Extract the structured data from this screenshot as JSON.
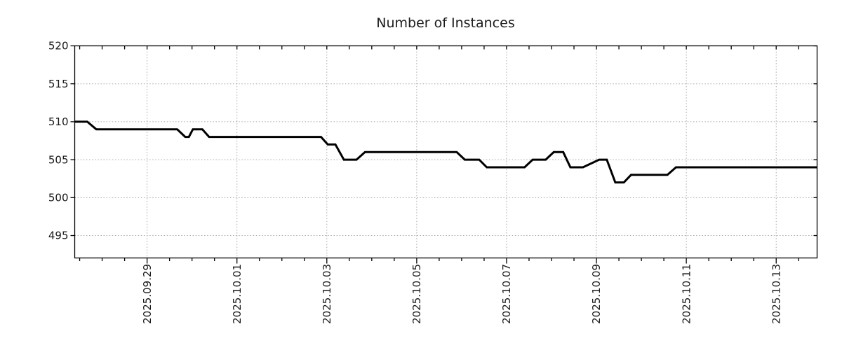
{
  "chart_data": {
    "type": "line",
    "title": "Number of Instances",
    "legend": "none",
    "grid": {
      "visible": true,
      "style": "dotted",
      "color": "#a6a6a6"
    },
    "colors": {
      "line": "#000000",
      "axis": "#000000",
      "text": "#1a1a1a",
      "background": "#ffffff"
    },
    "x_axis": {
      "kind": "date",
      "reference": "d = days relative to 2025.09.29 00:00",
      "range_days": [
        -1.61,
        14.91
      ],
      "minor_tick_step_days": 0.5,
      "major_ticks": [
        {
          "d": 0,
          "label": "2025.09.29"
        },
        {
          "d": 2,
          "label": "2025.10.01"
        },
        {
          "d": 4,
          "label": "2025.10.03"
        },
        {
          "d": 6,
          "label": "2025.10.05"
        },
        {
          "d": 8,
          "label": "2025.10.07"
        },
        {
          "d": 10,
          "label": "2025.10.09"
        },
        {
          "d": 12,
          "label": "2025.10.11"
        },
        {
          "d": 14,
          "label": "2025.10.13"
        }
      ]
    },
    "y_axis": {
      "range": [
        492.05,
        520
      ],
      "tick_values": [
        495,
        500,
        505,
        510,
        515,
        520
      ],
      "tick_labels": [
        "495",
        "500",
        "505",
        "510",
        "515",
        "520"
      ],
      "grid_values": [
        495,
        500,
        505,
        510,
        515
      ]
    },
    "series": [
      {
        "name": "instances",
        "color": "#000000",
        "width": 3,
        "points": [
          [
            -1.61,
            510
          ],
          [
            -1.33,
            510
          ],
          [
            -1.13,
            509
          ],
          [
            0.67,
            509
          ],
          [
            0.85,
            508
          ],
          [
            0.93,
            508
          ],
          [
            1.02,
            509
          ],
          [
            1.23,
            509
          ],
          [
            1.38,
            508
          ],
          [
            3.87,
            508
          ],
          [
            4.02,
            507
          ],
          [
            4.19,
            507
          ],
          [
            4.38,
            505
          ],
          [
            4.66,
            505
          ],
          [
            4.85,
            506
          ],
          [
            6.89,
            506
          ],
          [
            7.07,
            505
          ],
          [
            7.39,
            505
          ],
          [
            7.56,
            504
          ],
          [
            8.4,
            504
          ],
          [
            8.58,
            505
          ],
          [
            8.87,
            505
          ],
          [
            9.05,
            506
          ],
          [
            9.26,
            506
          ],
          [
            9.42,
            504
          ],
          [
            9.7,
            504
          ],
          [
            10.06,
            505
          ],
          [
            10.23,
            505
          ],
          [
            10.42,
            502
          ],
          [
            10.61,
            502
          ],
          [
            10.77,
            503
          ],
          [
            11.58,
            503
          ],
          [
            11.77,
            504
          ],
          [
            14.91,
            504
          ]
        ]
      }
    ]
  }
}
